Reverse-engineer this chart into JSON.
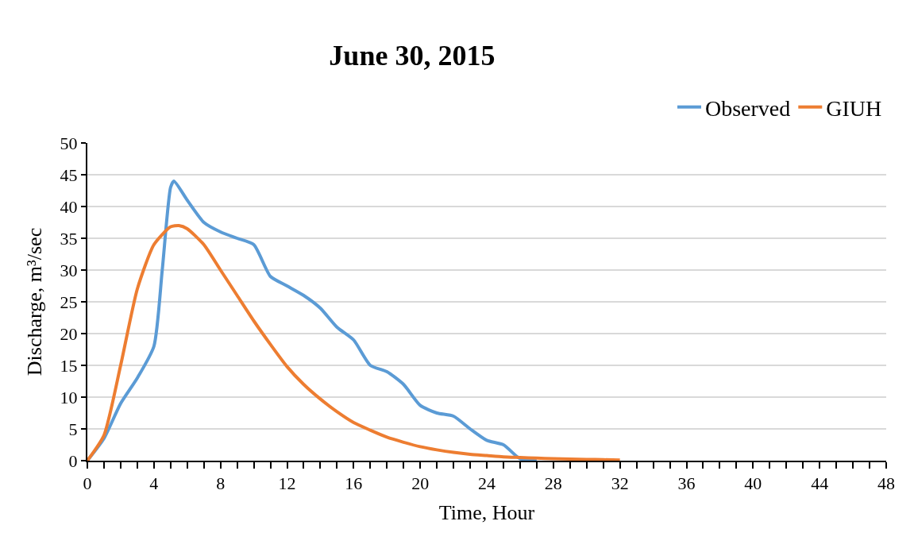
{
  "chart_data": {
    "type": "line",
    "title": "June 30, 2015",
    "xlabel": "Time, Hour",
    "ylabel": "Discharge, m³/sec",
    "xlim": [
      0,
      48
    ],
    "xticks": [
      0,
      4,
      8,
      12,
      16,
      20,
      24,
      28,
      32,
      36,
      40,
      44,
      48
    ],
    "ylim": [
      0,
      50
    ],
    "yticks": [
      0,
      5,
      10,
      15,
      20,
      25,
      30,
      35,
      40,
      45,
      50
    ],
    "grid": "y",
    "legend": "top right",
    "line_style": "solid",
    "marker": "none",
    "series": [
      {
        "name": "Observed",
        "color": "#5b9bd5",
        "x": [
          0,
          1,
          2,
          3,
          4,
          4.5,
          5,
          5.2,
          6,
          7,
          8,
          9,
          10,
          11,
          12,
          13,
          14,
          15,
          16,
          17,
          18,
          19,
          20,
          21,
          22,
          23,
          24,
          25,
          26,
          27
        ],
        "values": [
          0,
          3.5,
          9,
          13,
          18,
          30,
          43,
          44,
          41,
          37.5,
          36,
          35,
          34,
          29,
          27.5,
          26,
          24,
          21,
          19,
          15,
          14,
          12,
          8.7,
          7.5,
          7,
          5,
          3.2,
          2.5,
          0.3,
          0
        ]
      },
      {
        "name": "GIUH",
        "color": "#ed7d31",
        "x": [
          0,
          1,
          2,
          3,
          4,
          5,
          5.5,
          6,
          7,
          8,
          9,
          10,
          11,
          12,
          13,
          14,
          15,
          16,
          17,
          18,
          19,
          20,
          21,
          22,
          23,
          24,
          25,
          26,
          27,
          28,
          29,
          30,
          31,
          32
        ],
        "values": [
          0,
          4,
          15,
          27,
          34,
          36.8,
          37,
          36.5,
          34,
          30,
          26,
          22,
          18.3,
          14.8,
          12,
          9.7,
          7.7,
          6,
          4.8,
          3.7,
          2.9,
          2.2,
          1.7,
          1.3,
          1.0,
          0.8,
          0.6,
          0.5,
          0.4,
          0.3,
          0.25,
          0.2,
          0.15,
          0.1
        ]
      }
    ]
  }
}
